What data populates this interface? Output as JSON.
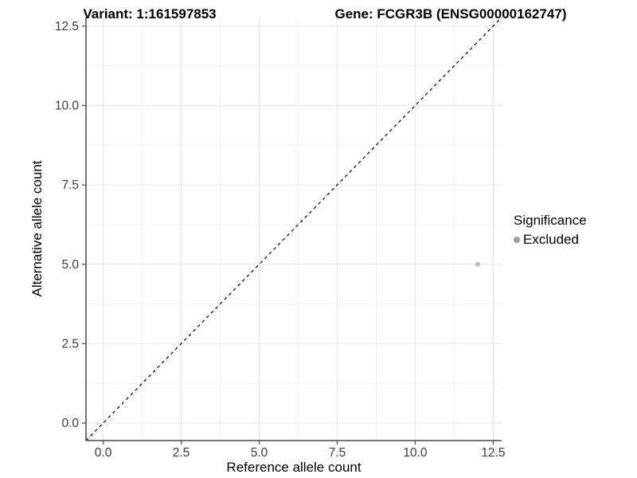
{
  "chart_data": {
    "type": "scatter",
    "title_left": "Variant: 1:161597853",
    "title_right": "Gene: FCGR3B (ENSG00000162747)",
    "xlabel": "Reference allele count",
    "ylabel": "Alternative allele count",
    "xlim": [
      -0.55,
      12.77
    ],
    "ylim": [
      -0.55,
      12.77
    ],
    "xticks": {
      "values": [
        0,
        2.5,
        5,
        7.5,
        10,
        12.5
      ],
      "labels": [
        "0.0",
        "2.5",
        "5.0",
        "7.5",
        "10.0",
        "12.5"
      ]
    },
    "yticks": {
      "values": [
        0,
        2.5,
        5,
        7.5,
        10,
        12.5
      ],
      "labels": [
        "0.0",
        "2.5",
        "5.0",
        "7.5",
        "10.0",
        "12.5"
      ]
    },
    "grid": {
      "major": true,
      "minor": true,
      "major_color": "#e4e4e4",
      "minor_color": "#f1f1f1"
    },
    "axis_color": "#464646",
    "tick_label_color": "#3c3c3c",
    "identity_line": {
      "style": "dashed",
      "color": "#000000",
      "from": [
        -0.55,
        -0.55
      ],
      "to": [
        12.77,
        12.77
      ]
    },
    "series": [
      {
        "name": "Excluded",
        "color": "#bdbdbd",
        "points": [
          {
            "x": 12,
            "y": 5
          }
        ]
      }
    ],
    "legend": {
      "title": "Significance",
      "position": "right",
      "items": [
        {
          "label": "Excluded",
          "color": "#9e9e9e"
        }
      ]
    }
  }
}
